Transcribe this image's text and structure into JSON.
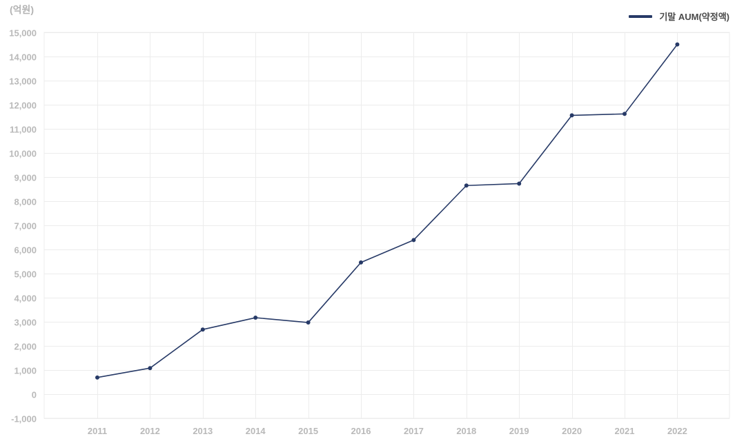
{
  "chart_data": {
    "type": "line",
    "unit_label": "(억원)",
    "legend_position": "top-right",
    "grid": true,
    "categories": [
      "2011",
      "2012",
      "2013",
      "2014",
      "2015",
      "2016",
      "2017",
      "2018",
      "2019",
      "2020",
      "2021",
      "2022"
    ],
    "series": [
      {
        "name": "기말 AUM(약정액)",
        "values": [
          690,
          1080,
          2680,
          3170,
          2970,
          5460,
          6390,
          8650,
          8730,
          11560,
          11620,
          14500
        ],
        "color": "#273a67"
      }
    ],
    "ylim": [
      -1000,
      15000
    ],
    "yticks": [
      -1000,
      0,
      1000,
      2000,
      3000,
      4000,
      5000,
      6000,
      7000,
      8000,
      9000,
      10000,
      11000,
      12000,
      13000,
      14000,
      15000
    ],
    "ytick_labels": [
      "-1,000",
      "0",
      "1,000",
      "2,000",
      "3,000",
      "4,000",
      "5,000",
      "6,000",
      "7,000",
      "8,000",
      "9,000",
      "10,000",
      "11,000",
      "12,000",
      "13,000",
      "14,000",
      "15,000"
    ]
  }
}
